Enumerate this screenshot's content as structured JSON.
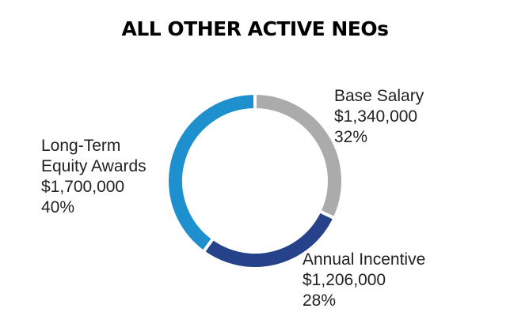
{
  "chart_data": {
    "type": "pie",
    "style": "donut",
    "title": "ALL OTHER ACTIVE NEOs",
    "slices": [
      {
        "name": "Base Salary",
        "amount": "$1,340,000",
        "percent_label": "32%",
        "value": 32,
        "color": "#ababab"
      },
      {
        "name": "Annual Incentive",
        "amount": "$1,206,000",
        "percent_label": "28%",
        "value": 28,
        "color": "#25428a"
      },
      {
        "name": "Long-Term Equity Awards",
        "name_lines": [
          "Long-Term",
          "Equity Awards"
        ],
        "amount": "$1,700,000",
        "percent_label": "40%",
        "value": 40,
        "color": "#1e90cd"
      }
    ]
  }
}
